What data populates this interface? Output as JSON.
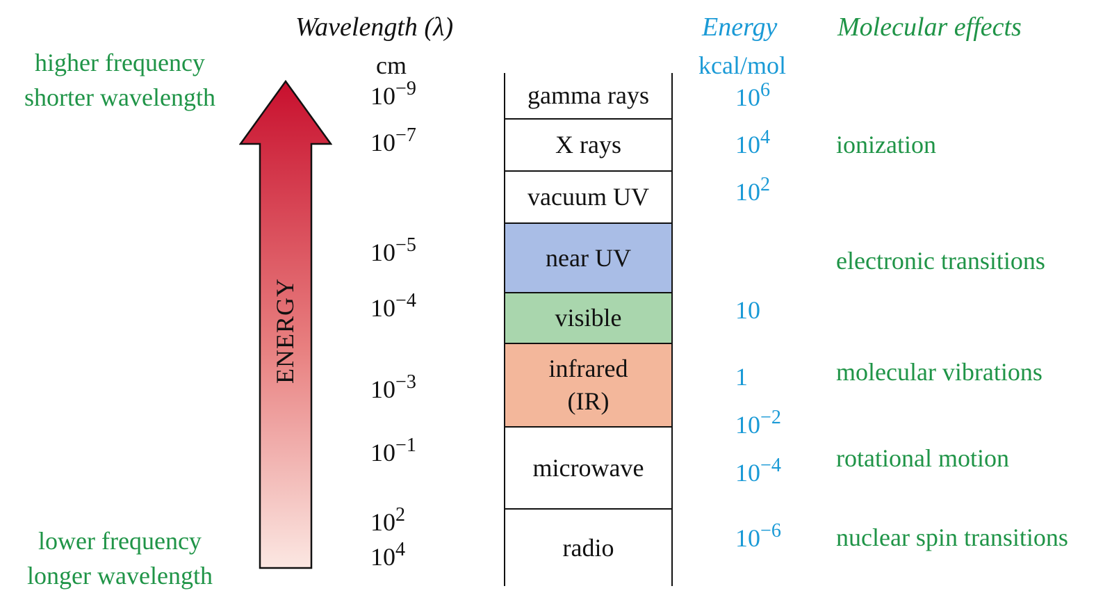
{
  "left_labels": {
    "top": [
      "higher frequency",
      "shorter wavelength"
    ],
    "bottom": [
      "lower frequency",
      "longer wavelength"
    ]
  },
  "arrow": {
    "label": "ENERGY",
    "color_top": "#c8102e",
    "color_bottom": "#fbe7e2"
  },
  "wavelength": {
    "title": "Wavelength (λ)",
    "unit": "cm",
    "ticks": [
      {
        "base": "10",
        "exp": "−9"
      },
      {
        "base": "10",
        "exp": "−7"
      },
      {
        "base": "10",
        "exp": "−5"
      },
      {
        "base": "10",
        "exp": "−4"
      },
      {
        "base": "10",
        "exp": "−3"
      },
      {
        "base": "10",
        "exp": "−1"
      },
      {
        "base": "10",
        "exp": "2"
      },
      {
        "base": "10",
        "exp": "4"
      }
    ]
  },
  "bands": [
    {
      "label": "gamma rays",
      "color": "#ffffff"
    },
    {
      "label": "X rays",
      "color": "#ffffff"
    },
    {
      "label": "vacuum UV",
      "color": "#ffffff"
    },
    {
      "label": "near UV",
      "color": "#a9bde6"
    },
    {
      "label": "visible",
      "color": "#a9d6ad"
    },
    {
      "label": "infrared\n(IR)",
      "color": "#f3b79b"
    },
    {
      "label": "microwave",
      "color": "#ffffff"
    },
    {
      "label": "radio",
      "color": "#ffffff"
    }
  ],
  "energy": {
    "title": "Energy",
    "unit": "kcal/mol",
    "ticks": [
      {
        "base": "10",
        "exp": "6"
      },
      {
        "base": "10",
        "exp": "4"
      },
      {
        "base": "10",
        "exp": "2"
      },
      {
        "base": "10",
        "exp": ""
      },
      {
        "base": "1",
        "exp": ""
      },
      {
        "base": "10",
        "exp": "−2"
      },
      {
        "base": "10",
        "exp": "−4"
      },
      {
        "base": "10",
        "exp": "−6"
      }
    ]
  },
  "molecular_effects": {
    "title": "Molecular effects",
    "items": [
      "ionization",
      "electronic transitions",
      "molecular vibrations",
      "rotational motion",
      "nuclear spin transitions"
    ]
  }
}
